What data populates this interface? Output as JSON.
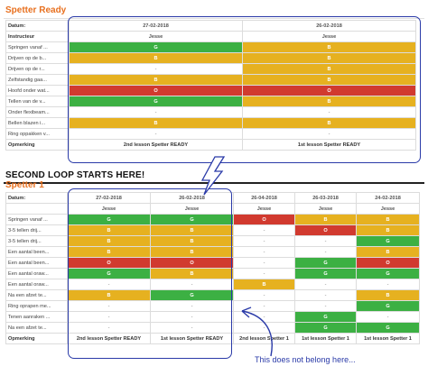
{
  "section1": {
    "title": "Spetter Ready",
    "header_label": "Datum:",
    "instructor_label": "Instructeur",
    "footer_label": "Opmerking",
    "columns": [
      {
        "date": "27-02-2018",
        "instructor": "Jesse",
        "footer": "2nd lesson Spetter READY"
      },
      {
        "date": "26-02-2018",
        "instructor": "Jesse",
        "footer": "1st lesson Spetter READY"
      }
    ],
    "rows": [
      {
        "label": "Springen vanaf ...",
        "cells": [
          "G",
          "B"
        ]
      },
      {
        "label": "Drijven op de b...",
        "cells": [
          "B",
          "B"
        ]
      },
      {
        "label": "Drijven op de r...",
        "cells": [
          "-",
          "B"
        ]
      },
      {
        "label": "Zelfstandig gaa...",
        "cells": [
          "B",
          "B"
        ]
      },
      {
        "label": "Hoofd onder wat...",
        "cells": [
          "O",
          "O"
        ]
      },
      {
        "label": "Tellen van de v...",
        "cells": [
          "G",
          "B"
        ]
      },
      {
        "label": "Onder flexibeam...",
        "cells": [
          "-",
          "-"
        ]
      },
      {
        "label": "Bellen blazen i...",
        "cells": [
          "B",
          "B"
        ]
      },
      {
        "label": "Ring oppakken v...",
        "cells": [
          "-",
          "-"
        ]
      }
    ]
  },
  "loop_note": "SECOND LOOP STARTS HERE!",
  "section2": {
    "title": "Spetter 1",
    "header_label": "Datum:",
    "instructor_label": "",
    "footer_label": "Opmerking",
    "columns": [
      {
        "date": "27-02-2018",
        "instructor": "Jesse",
        "footer": "2nd lesson Spetter READY"
      },
      {
        "date": "26-02-2018",
        "instructor": "Jesse",
        "footer": "1st lesson Spetter READY"
      },
      {
        "date": "26-04-2018",
        "instructor": "Jesse",
        "footer": "2nd lesson Spetter 1"
      },
      {
        "date": "26-03-2018",
        "instructor": "Jesse",
        "footer": "1st lesson Spetter 1"
      },
      {
        "date": "24-02-2018",
        "instructor": "Jesse",
        "footer": "1st lesson Spetter 1"
      }
    ],
    "rows": [
      {
        "label": "Springen vanaf ...",
        "cells": [
          "G",
          "G",
          "O",
          "B",
          "B"
        ]
      },
      {
        "label": "3-5 tellen drij...",
        "cells": [
          "B",
          "B",
          "-",
          "O",
          "B"
        ]
      },
      {
        "label": "3-5 tellen drij...",
        "cells": [
          "B",
          "B",
          "-",
          "-",
          "G"
        ]
      },
      {
        "label": "Een aantal been...",
        "cells": [
          "B",
          "B",
          "-",
          "-",
          "B"
        ]
      },
      {
        "label": "Een aantal been...",
        "cells": [
          "O",
          "O",
          "-",
          "G",
          "O"
        ]
      },
      {
        "label": "Een aantal oraw...",
        "cells": [
          "G",
          "B",
          "-",
          "G",
          "G"
        ]
      },
      {
        "label": "Een aantal oraw...",
        "cells": [
          "-",
          "-",
          "B",
          "-",
          "-"
        ]
      },
      {
        "label": "Na een afzet te...",
        "cells": [
          "B",
          "G",
          "-",
          "-",
          "B"
        ]
      },
      {
        "label": "Ring oprapen me...",
        "cells": [
          "-",
          "-",
          "-",
          "-",
          "G"
        ]
      },
      {
        "label": "Tenen aanraken ...",
        "cells": [
          "-",
          "-",
          "-",
          "G",
          "-"
        ]
      },
      {
        "label": "Na een afzet te...",
        "cells": [
          "-",
          "-",
          "-",
          "G",
          "G"
        ]
      }
    ]
  },
  "annotation_note": "This does not belong here...",
  "colors": {
    "G": "#3cb043",
    "B": "#e6b120",
    "O": "#d13a2f",
    "frame": "#2a3aa8",
    "title": "#e8701f"
  }
}
